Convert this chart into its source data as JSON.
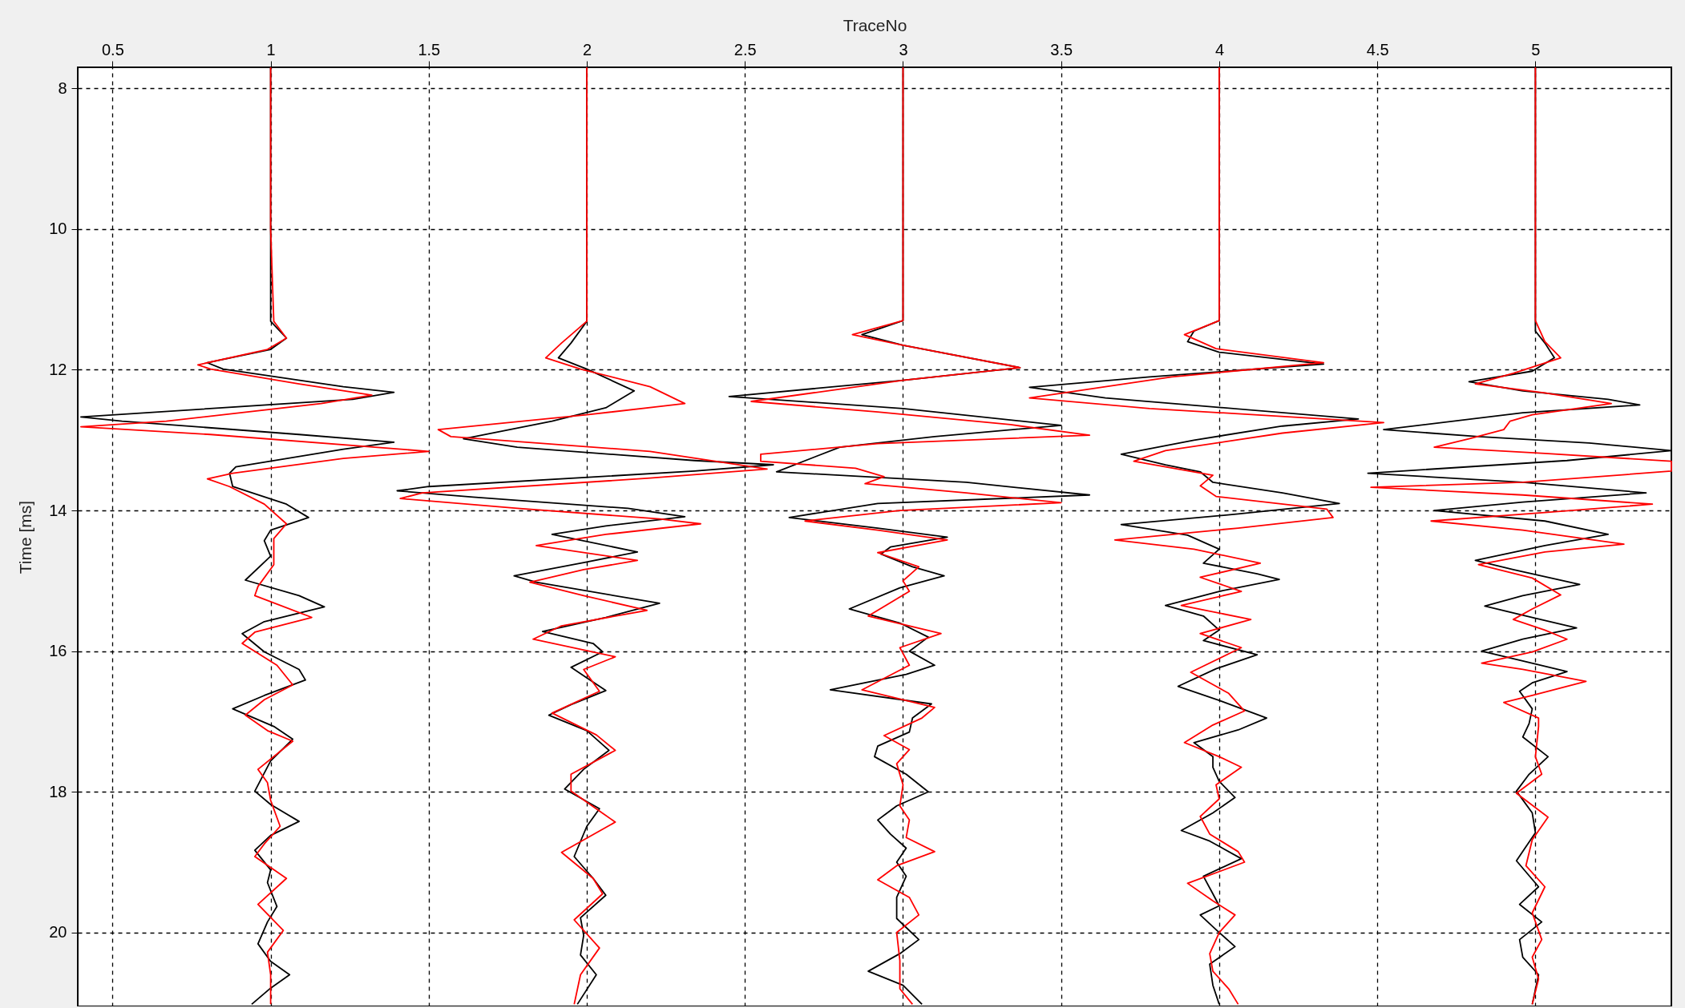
{
  "chart_data": {
    "type": "line",
    "xlabel": "TraceNo",
    "ylabel": "Time [ms]",
    "xlim": [
      0.39,
      5.43
    ],
    "ylim": [
      21.05,
      7.7
    ],
    "xticks": [
      0.5,
      1,
      1.5,
      2,
      2.5,
      3,
      3.5,
      4,
      4.5,
      5
    ],
    "yticks": [
      8,
      10,
      12,
      14,
      16,
      18,
      20
    ],
    "grid": true,
    "legend": false,
    "line_style": "solid",
    "marker": "none",
    "series": [
      {
        "color": "#000000",
        "x": [
          1.0,
          1.0,
          1.0,
          1.05,
          1.0,
          0.8,
          0.85,
          1.23,
          1.39,
          1.26,
          0.4,
          0.53,
          1.09,
          1.39,
          1.23,
          0.89,
          0.87,
          0.88,
          1.05,
          1.12,
          1.0,
          0.98,
          1.0,
          0.92,
          1.09,
          1.17,
          0.98,
          0.91,
          0.98,
          1.09,
          1.11,
          0.98,
          0.88,
          1.01,
          1.07,
          1.0,
          0.95,
          1.0,
          1.09,
          1.0,
          0.95,
          1.0,
          0.99,
          1.02,
          0.99,
          0.96,
          1.0,
          1.06,
          1.0,
          0.94
        ],
        "values": [
          7.7,
          10,
          11.31,
          11.55,
          11.71,
          11.9,
          11.99,
          12.24,
          12.32,
          12.42,
          12.67,
          12.73,
          12.92,
          13.03,
          13.13,
          13.38,
          13.47,
          13.66,
          13.91,
          14.1,
          14.28,
          14.43,
          14.65,
          14.99,
          15.21,
          15.37,
          15.58,
          15.75,
          16.01,
          16.26,
          16.41,
          16.63,
          16.82,
          17.07,
          17.25,
          17.56,
          17.99,
          18.18,
          18.42,
          18.62,
          18.83,
          19.11,
          19.29,
          19.63,
          19.85,
          20.16,
          20.41,
          20.6,
          20.79,
          21.02
        ]
      },
      {
        "color": "#ff0000",
        "x": [
          1.0,
          1.0,
          1.01,
          1.05,
          0.99,
          0.77,
          0.81,
          1.09,
          1.32,
          1.16,
          0.67,
          0.4,
          0.81,
          1.5,
          1.23,
          0.88,
          0.8,
          0.87,
          0.98,
          1.05,
          1.01,
          1.01,
          0.96,
          0.95,
          1.13,
          0.95,
          0.91,
          1.02,
          1.07,
          0.98,
          0.92,
          0.99,
          1.07,
          0.96,
          0.99,
          1.0,
          1.03,
          0.98,
          0.95,
          1.05,
          0.96,
          1.04,
          0.99,
          1.0,
          1.0
        ],
        "values": [
          7.7,
          10,
          11.31,
          11.55,
          11.71,
          11.93,
          11.99,
          12.2,
          12.36,
          12.48,
          12.73,
          12.81,
          12.92,
          13.16,
          13.26,
          13.47,
          13.55,
          13.66,
          13.91,
          14.19,
          14.4,
          14.77,
          15.08,
          15.21,
          15.52,
          15.73,
          15.89,
          16.2,
          16.48,
          16.69,
          16.91,
          17.13,
          17.28,
          17.68,
          17.87,
          18.12,
          18.49,
          18.74,
          18.92,
          19.23,
          19.6,
          19.97,
          20.28,
          20.6,
          21.02
        ]
      },
      {
        "color": "#000000",
        "x": [
          2.0,
          2.0,
          2.0,
          1.95,
          1.91,
          2.0,
          2.15,
          2.06,
          1.89,
          1.61,
          1.78,
          2.34,
          2.59,
          2.34,
          1.5,
          1.4,
          1.64,
          2.13,
          2.31,
          2.06,
          1.89,
          2.16,
          1.99,
          1.77,
          1.84,
          2.23,
          2.06,
          1.86,
          2.02,
          2.05,
          1.95,
          2.0,
          2.06,
          1.95,
          1.88,
          2.0,
          2.07,
          1.99,
          1.93,
          2.04,
          2.0,
          1.96,
          2.02,
          2.06,
          1.98,
          1.99,
          1.98,
          2.03,
          1.97
        ],
        "values": [
          7.7,
          10,
          11.31,
          11.62,
          11.83,
          11.99,
          12.3,
          12.54,
          12.73,
          12.98,
          13.1,
          13.29,
          13.35,
          13.44,
          13.66,
          13.72,
          13.81,
          13.97,
          14.09,
          14.22,
          14.34,
          14.59,
          14.74,
          14.93,
          15.02,
          15.32,
          15.52,
          15.72,
          15.89,
          16.01,
          16.23,
          16.38,
          16.56,
          16.76,
          16.91,
          17.13,
          17.41,
          17.68,
          17.96,
          18.24,
          18.49,
          18.92,
          19.23,
          19.47,
          19.79,
          20.04,
          20.32,
          20.6,
          21.02
        ]
      },
      {
        "color": "#ff0000",
        "x": [
          2.0,
          2.0,
          2.0,
          1.92,
          1.87,
          1.98,
          2.2,
          2.31,
          2.0,
          1.53,
          1.57,
          2.2,
          2.57,
          2.2,
          1.48,
          1.41,
          1.78,
          2.23,
          2.36,
          2.06,
          1.84,
          2.16,
          1.99,
          1.82,
          1.99,
          2.19,
          1.92,
          1.83,
          2.09,
          1.99,
          2.04,
          1.89,
          2.03,
          2.09,
          1.95,
          1.95,
          2.09,
          1.92,
          2.02,
          2.05,
          1.96,
          2.04,
          1.98,
          1.96
        ],
        "values": [
          7.7,
          10,
          11.31,
          11.62,
          11.83,
          11.99,
          12.24,
          12.48,
          12.64,
          12.85,
          12.95,
          13.16,
          13.41,
          13.54,
          13.75,
          13.83,
          13.97,
          14.12,
          14.19,
          14.34,
          14.5,
          14.71,
          14.84,
          15.02,
          15.21,
          15.42,
          15.64,
          15.83,
          16.08,
          16.26,
          16.57,
          16.88,
          17.19,
          17.41,
          17.75,
          17.99,
          18.43,
          18.86,
          19.23,
          19.45,
          19.82,
          20.22,
          20.6,
          21.02
        ]
      },
      {
        "color": "#000000",
        "x": [
          3.0,
          3.0,
          3.0,
          2.87,
          3.0,
          3.37,
          3.0,
          2.45,
          3.0,
          3.5,
          3.1,
          2.8,
          2.6,
          3.2,
          3.59,
          2.92,
          2.64,
          2.92,
          3.14,
          2.96,
          2.93,
          3.03,
          3.13,
          2.99,
          2.83,
          2.99,
          3.08,
          3.02,
          3.1,
          3.01,
          2.77,
          3.09,
          3.03,
          3.02,
          2.92,
          2.91,
          3.01,
          3.08,
          2.98,
          2.92,
          2.96,
          3.01,
          2.98,
          3.01,
          2.98,
          2.98,
          3.05,
          2.99,
          2.89,
          3.0,
          3.06
        ],
        "values": [
          7.7,
          10,
          11.3,
          11.5,
          11.65,
          11.97,
          12.15,
          12.38,
          12.55,
          12.79,
          12.95,
          13.1,
          13.45,
          13.6,
          13.78,
          13.9,
          14.1,
          14.25,
          14.38,
          14.52,
          14.62,
          14.8,
          14.93,
          15.1,
          15.4,
          15.6,
          15.8,
          16.0,
          16.2,
          16.33,
          16.55,
          16.75,
          16.95,
          17.15,
          17.35,
          17.5,
          17.75,
          18.0,
          18.2,
          18.4,
          18.6,
          18.8,
          19.0,
          19.2,
          19.5,
          19.8,
          20.1,
          20.3,
          20.55,
          20.75,
          21.02
        ]
      },
      {
        "color": "#ff0000",
        "x": [
          3.0,
          3.0,
          3.0,
          2.84,
          3.0,
          3.37,
          3.0,
          2.52,
          2.92,
          3.34,
          3.59,
          2.92,
          2.55,
          2.55,
          2.85,
          2.94,
          2.88,
          3.2,
          3.5,
          2.99,
          2.69,
          2.92,
          3.14,
          2.92,
          3.05,
          3.0,
          3.02,
          2.89,
          3.12,
          2.99,
          3.02,
          2.87,
          3.1,
          3.06,
          2.94,
          3.02,
          2.98,
          3.0,
          2.99,
          3.02,
          3.01,
          3.1,
          2.98,
          2.92,
          3.02,
          3.05,
          2.98,
          2.99,
          2.99,
          3.03
        ],
        "values": [
          7.7,
          10,
          11.3,
          11.5,
          11.65,
          11.97,
          12.15,
          12.45,
          12.6,
          12.78,
          12.93,
          13.05,
          13.2,
          13.3,
          13.4,
          13.52,
          13.62,
          13.75,
          13.89,
          14.0,
          14.15,
          14.28,
          14.42,
          14.6,
          14.8,
          15.0,
          15.15,
          15.5,
          15.75,
          15.95,
          16.2,
          16.55,
          16.8,
          16.95,
          17.2,
          17.4,
          17.6,
          17.9,
          18.2,
          18.4,
          18.65,
          18.85,
          19.05,
          19.25,
          19.5,
          19.75,
          20.0,
          20.4,
          20.8,
          21.02
        ]
      },
      {
        "color": "#000000",
        "x": [
          4.0,
          4.0,
          4.0,
          3.92,
          3.9,
          4.0,
          4.33,
          3.78,
          3.4,
          3.64,
          4.44,
          4.2,
          3.92,
          3.69,
          3.83,
          3.94,
          3.98,
          4.2,
          4.38,
          4.06,
          3.69,
          3.9,
          4.0,
          3.95,
          4.12,
          4.19,
          4.0,
          3.83,
          3.95,
          4.0,
          3.95,
          4.12,
          3.99,
          3.87,
          4.0,
          4.15,
          4.06,
          3.92,
          3.98,
          3.98,
          4.0,
          4.05,
          3.98,
          3.88,
          3.97,
          4.07,
          3.95,
          3.98,
          4.0,
          3.94,
          4.0,
          4.05,
          3.97,
          3.98,
          4.0
        ],
        "values": [
          7.7,
          10,
          11.3,
          11.45,
          11.6,
          11.75,
          11.92,
          12.1,
          12.25,
          12.4,
          12.7,
          12.8,
          13.0,
          13.2,
          13.35,
          13.45,
          13.6,
          13.75,
          13.9,
          14.05,
          14.2,
          14.35,
          14.55,
          14.75,
          14.9,
          14.98,
          15.15,
          15.35,
          15.5,
          15.7,
          15.85,
          16.05,
          16.25,
          16.5,
          16.7,
          16.95,
          17.12,
          17.3,
          17.5,
          17.65,
          17.85,
          18.08,
          18.3,
          18.55,
          18.7,
          18.95,
          19.2,
          19.45,
          19.62,
          19.75,
          20.0,
          20.2,
          20.45,
          20.75,
          21.02
        ]
      },
      {
        "color": "#ff0000",
        "x": [
          4.0,
          4.0,
          4.0,
          3.89,
          3.99,
          4.33,
          3.85,
          3.4,
          3.78,
          4.52,
          4.2,
          3.83,
          3.73,
          3.98,
          3.94,
          3.99,
          4.34,
          4.36,
          4.06,
          3.67,
          3.92,
          4.13,
          3.94,
          4.07,
          3.88,
          4.1,
          3.94,
          4.07,
          3.91,
          4.03,
          4.08,
          3.98,
          3.89,
          4.0,
          4.07,
          3.99,
          4.0,
          3.94,
          3.97,
          4.06,
          4.08,
          3.9,
          3.98,
          4.05,
          4.0,
          3.97,
          3.98,
          4.03,
          4.06
        ],
        "values": [
          7.7,
          10,
          11.3,
          11.5,
          11.7,
          11.9,
          12.1,
          12.4,
          12.55,
          12.75,
          12.9,
          13.15,
          13.3,
          13.5,
          13.65,
          13.8,
          13.98,
          14.1,
          14.25,
          14.42,
          14.55,
          14.75,
          14.95,
          15.15,
          15.35,
          15.55,
          15.75,
          15.95,
          16.3,
          16.6,
          16.85,
          17.05,
          17.3,
          17.5,
          17.65,
          17.9,
          18.1,
          18.35,
          18.6,
          18.85,
          19.0,
          19.3,
          19.55,
          19.75,
          20.0,
          20.3,
          20.55,
          20.8,
          21.02
        ]
      },
      {
        "color": "#000000",
        "x": [
          5.0,
          5.0,
          5.0,
          5.0,
          5.03,
          5.06,
          4.99,
          4.79,
          4.96,
          5.23,
          5.33,
          4.96,
          4.52,
          4.82,
          5.17,
          5.43,
          5.1,
          4.47,
          4.96,
          5.35,
          4.96,
          4.68,
          5.03,
          5.23,
          5.03,
          4.81,
          4.93,
          5.14,
          4.96,
          4.84,
          4.99,
          5.13,
          4.96,
          4.83,
          4.96,
          5.1,
          4.99,
          4.95,
          4.99,
          4.98,
          4.96,
          5.04,
          4.98,
          4.94,
          4.99,
          5.0,
          4.94,
          5.01,
          4.95,
          5.02,
          4.95,
          4.96,
          5.01,
          4.99
        ],
        "values": [
          7.7,
          10,
          11.3,
          11.45,
          11.62,
          11.83,
          12.02,
          12.17,
          12.3,
          12.42,
          12.5,
          12.61,
          12.85,
          12.95,
          13.04,
          13.15,
          13.29,
          13.47,
          13.6,
          13.75,
          13.88,
          14.0,
          14.15,
          14.34,
          14.5,
          14.71,
          14.84,
          15.05,
          15.21,
          15.36,
          15.52,
          15.67,
          15.83,
          16.0,
          16.14,
          16.29,
          16.45,
          16.57,
          16.82,
          17.03,
          17.22,
          17.5,
          17.75,
          17.99,
          18.3,
          18.58,
          18.98,
          19.35,
          19.6,
          19.85,
          20.1,
          20.35,
          20.6,
          21.02
        ]
      },
      {
        "color": "#ff0000",
        "x": [
          5.0,
          5.0,
          5.0,
          5.03,
          5.08,
          4.93,
          4.81,
          5.03,
          5.24,
          4.99,
          4.92,
          4.9,
          4.79,
          4.68,
          5.03,
          5.43,
          5.43,
          4.96,
          4.48,
          4.96,
          5.37,
          5.03,
          4.67,
          4.96,
          5.28,
          5.03,
          4.82,
          4.99,
          5.08,
          4.99,
          4.93,
          5.03,
          5.1,
          4.99,
          4.83,
          4.96,
          5.16,
          4.99,
          4.9,
          5.01,
          5.01,
          5.0,
          5.02,
          4.94,
          5.04,
          4.99,
          4.97,
          5.03,
          4.99,
          5.02,
          4.99,
          5.01,
          4.99
        ],
        "values": [
          7.7,
          10,
          11.3,
          11.6,
          11.83,
          12.05,
          12.2,
          12.33,
          12.48,
          12.64,
          12.73,
          12.85,
          12.98,
          13.1,
          13.19,
          13.3,
          13.44,
          13.6,
          13.67,
          13.78,
          13.91,
          14.03,
          14.15,
          14.28,
          14.48,
          14.59,
          14.77,
          14.96,
          15.2,
          15.4,
          15.55,
          15.7,
          15.83,
          16.01,
          16.17,
          16.26,
          16.43,
          16.63,
          16.73,
          16.95,
          17.07,
          17.5,
          17.75,
          18.02,
          18.36,
          18.68,
          19.05,
          19.35,
          19.72,
          20.1,
          20.35,
          20.66,
          21.02
        ]
      }
    ]
  }
}
